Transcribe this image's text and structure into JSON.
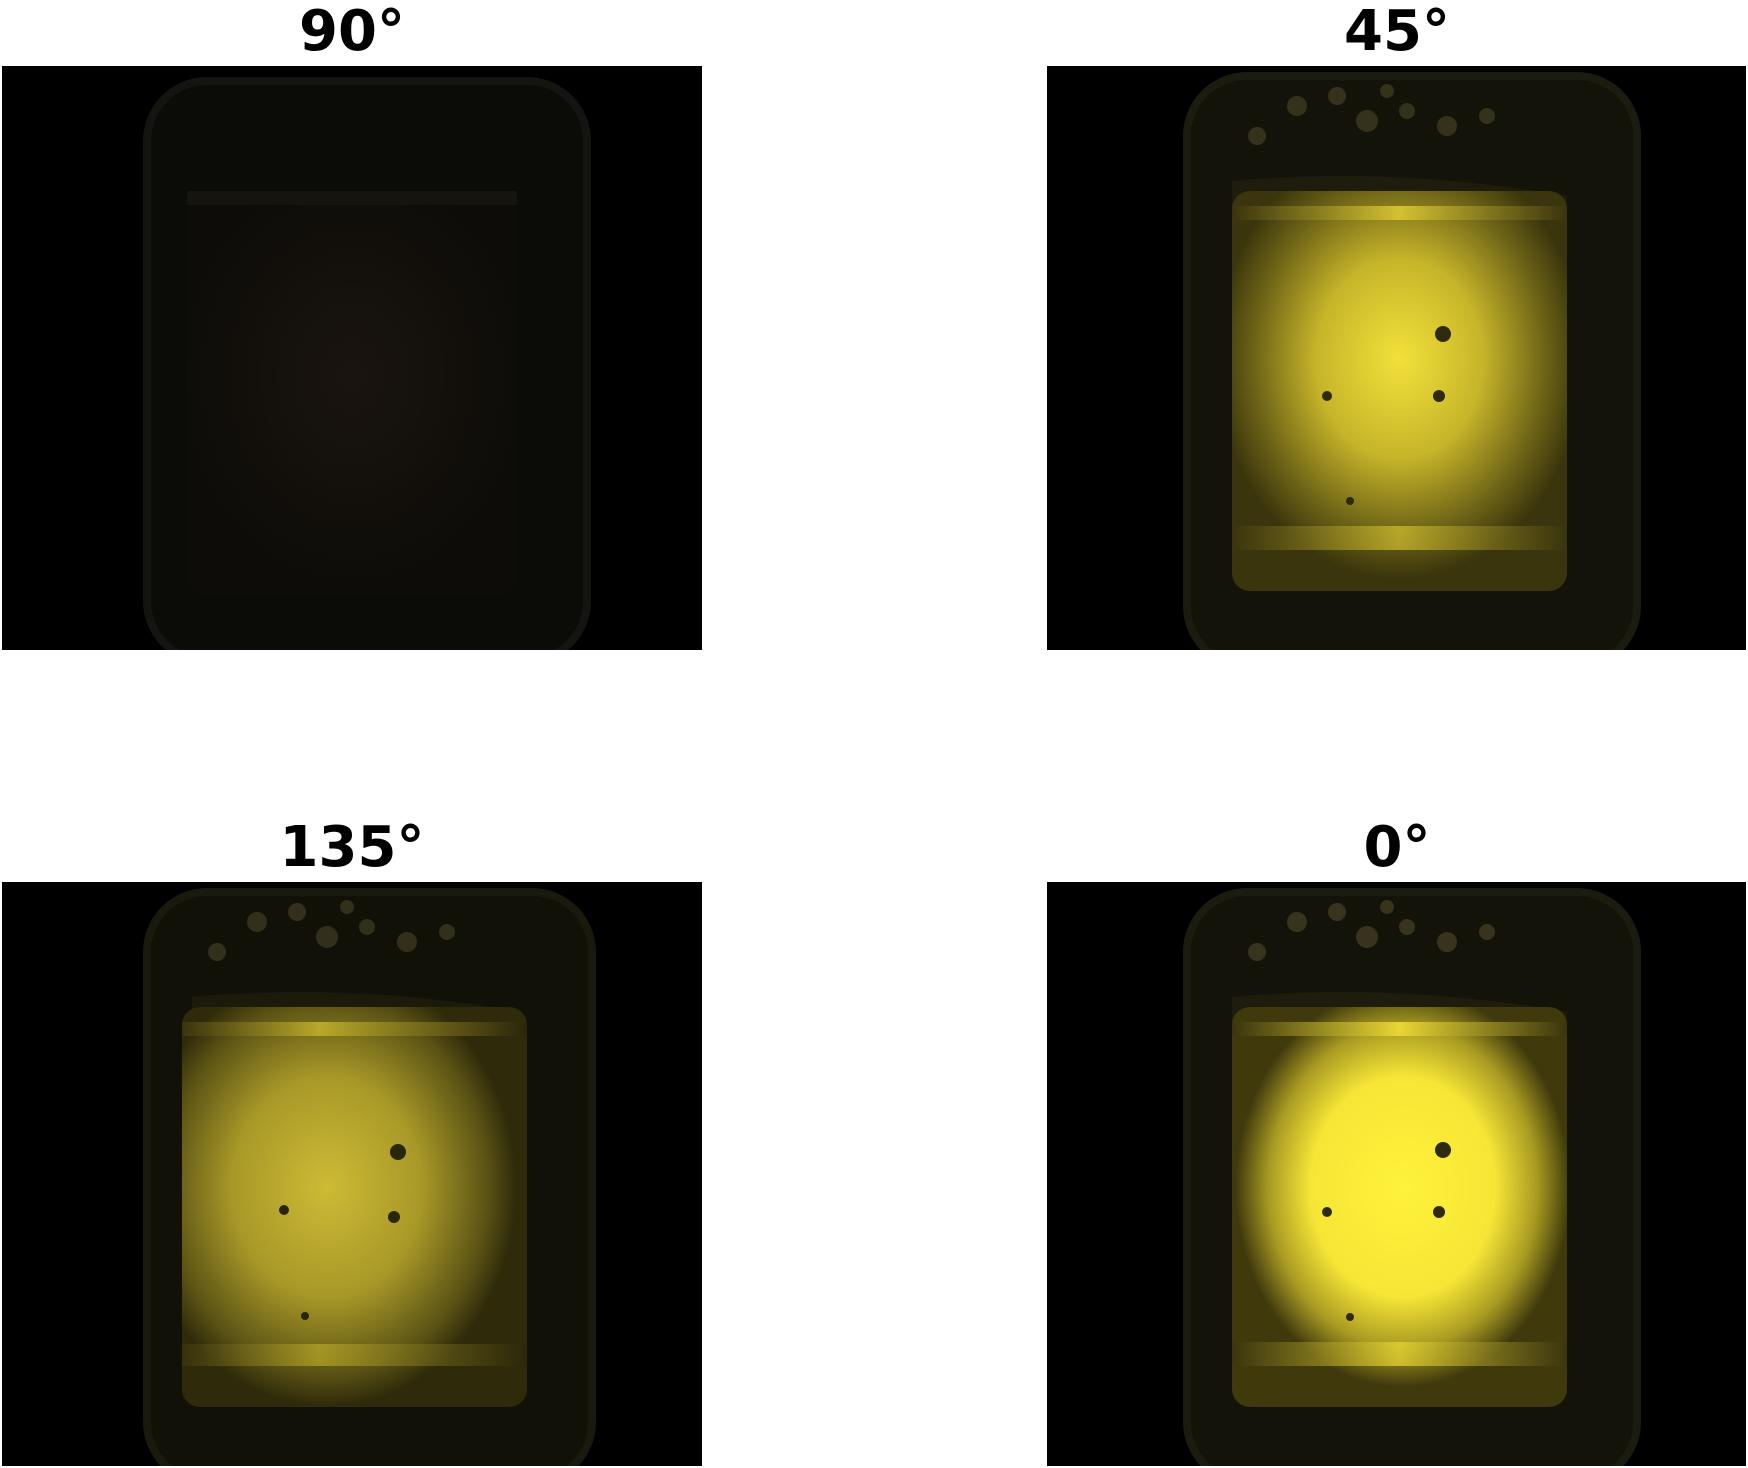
{
  "panels": [
    {
      "title": "90°",
      "brightness": 0.02
    },
    {
      "title": "45°",
      "brightness": 0.75
    },
    {
      "title": "135°",
      "brightness": 0.55
    },
    {
      "title": "0°",
      "brightness": 1.0
    }
  ],
  "colors": {
    "background": "#ffffff",
    "title": "#000000",
    "photo_background": "#000000",
    "liquid_glow": "#fff23a"
  }
}
